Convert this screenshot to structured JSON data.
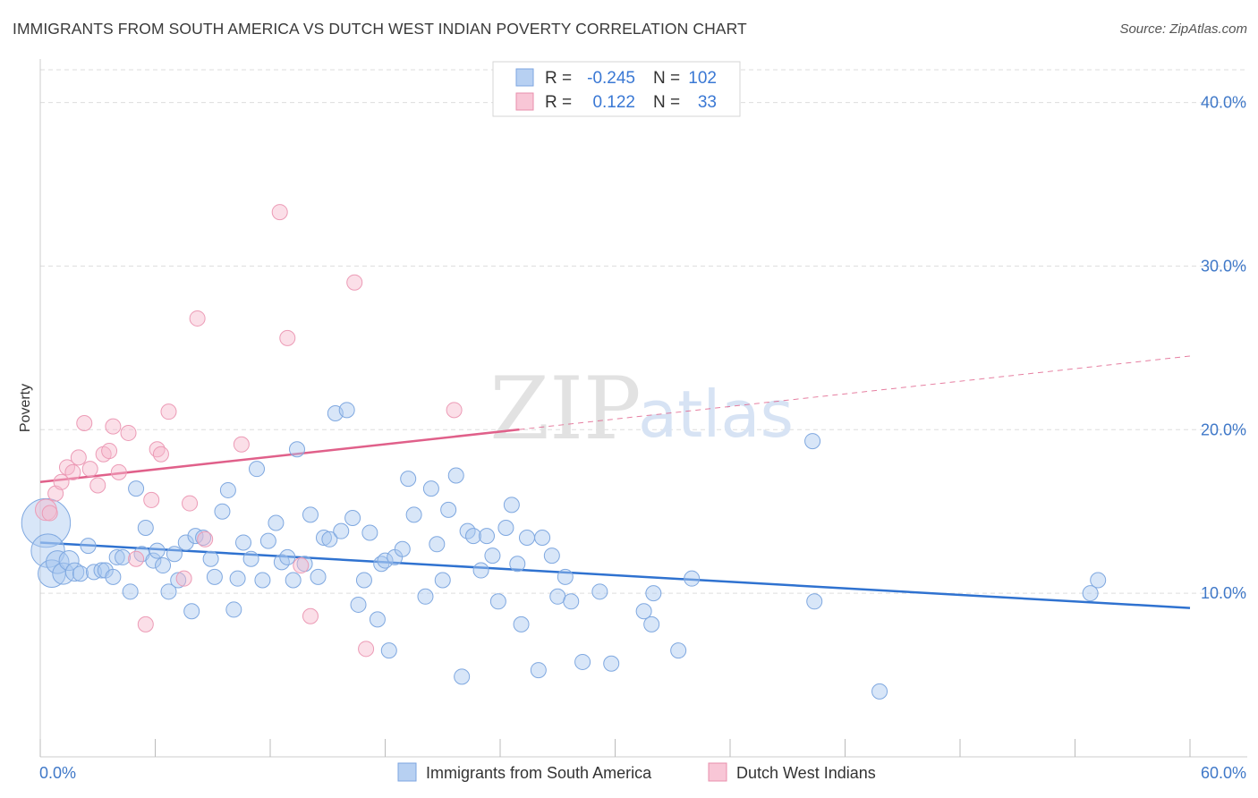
{
  "title": "IMMIGRANTS FROM SOUTH AMERICA VS DUTCH WEST INDIAN POVERTY CORRELATION CHART",
  "source": "Source: ZipAtlas.com",
  "watermark": {
    "zip": "ZIP",
    "atlas": "atlas"
  },
  "colors": {
    "blue": "#3a78d4",
    "blue_fill": "#a9c8f0",
    "blue_line": "#2f72d0",
    "pink": "#e0608a",
    "pink_fill": "#f6b8cc",
    "pink_line": "#e0608a",
    "axis_text": "#3f78c8",
    "grid": "#dddddd"
  },
  "legend": {
    "rows": [
      {
        "series": "blue",
        "r_label": "R =",
        "r_value": "-0.245",
        "n_label": "N =",
        "n_value": "102"
      },
      {
        "series": "pink",
        "r_label": "R =",
        "r_value": "0.122",
        "n_label": "N =",
        "n_value": "33"
      }
    ]
  },
  "bottom_legend": [
    {
      "series": "blue",
      "label": "Immigrants from South America"
    },
    {
      "series": "pink",
      "label": "Dutch West Indians"
    }
  ],
  "chart_data": {
    "type": "scatter",
    "title": "IMMIGRANTS FROM SOUTH AMERICA VS DUTCH WEST INDIAN POVERTY CORRELATION CHART",
    "xlabel": "",
    "ylabel": "Poverty",
    "xlim": [
      0,
      60
    ],
    "ylim": [
      0,
      42
    ],
    "x_tick_labels": [
      {
        "value": 0,
        "label": "0.0%"
      },
      {
        "value": 60,
        "label": "60.0%"
      }
    ],
    "x_minor_ticks": [
      0,
      6,
      12,
      18,
      24,
      30,
      36,
      42,
      48,
      54,
      60
    ],
    "y_ticks": [
      {
        "value": 10,
        "label": "10.0%"
      },
      {
        "value": 20,
        "label": "20.0%"
      },
      {
        "value": 30,
        "label": "30.0%"
      },
      {
        "value": 40,
        "label": "40.0%"
      }
    ],
    "grid": true,
    "series": [
      {
        "name": "Immigrants from South America",
        "color": "blue",
        "trend": {
          "x0": 0,
          "y0": 13.1,
          "x1": 60,
          "y1": 9.1,
          "dashed_from": null
        },
        "points": [
          [
            0.3,
            14.3,
            3.2
          ],
          [
            0.4,
            12.6,
            2.2
          ],
          [
            0.6,
            11.2,
            1.8
          ],
          [
            0.9,
            11.9,
            1.5
          ],
          [
            1.2,
            11.2,
            1.4
          ],
          [
            1.5,
            12.0,
            1.3
          ],
          [
            1.8,
            11.3,
            1.2
          ],
          [
            2.1,
            11.2,
            1.0
          ],
          [
            2.5,
            12.9,
            1.0
          ],
          [
            2.8,
            11.3,
            1.0
          ],
          [
            3.2,
            11.4,
            1.0
          ],
          [
            3.4,
            11.4,
            1.0
          ],
          [
            3.8,
            11.0,
            1.0
          ],
          [
            4.0,
            12.2,
            1.0
          ],
          [
            4.3,
            12.2,
            1.0
          ],
          [
            4.7,
            10.1,
            1.0
          ],
          [
            5.0,
            16.4,
            1.0
          ],
          [
            5.3,
            12.4,
            1.0
          ],
          [
            5.5,
            14.0,
            1.0
          ],
          [
            5.9,
            12.0,
            1.0
          ],
          [
            6.1,
            12.6,
            1.0
          ],
          [
            6.4,
            11.7,
            1.0
          ],
          [
            6.7,
            10.1,
            1.0
          ],
          [
            7.0,
            12.4,
            1.0
          ],
          [
            7.2,
            10.8,
            1.0
          ],
          [
            7.6,
            13.1,
            1.0
          ],
          [
            7.9,
            8.9,
            1.0
          ],
          [
            8.1,
            13.5,
            1.0
          ],
          [
            8.5,
            13.4,
            1.0
          ],
          [
            8.9,
            12.1,
            1.0
          ],
          [
            9.1,
            11.0,
            1.0
          ],
          [
            9.5,
            15.0,
            1.0
          ],
          [
            9.8,
            16.3,
            1.0
          ],
          [
            10.1,
            9.0,
            1.0
          ],
          [
            10.3,
            10.9,
            1.0
          ],
          [
            10.6,
            13.1,
            1.0
          ],
          [
            11.0,
            12.1,
            1.0
          ],
          [
            11.3,
            17.6,
            1.0
          ],
          [
            11.6,
            10.8,
            1.0
          ],
          [
            11.9,
            13.2,
            1.0
          ],
          [
            12.3,
            14.3,
            1.0
          ],
          [
            12.6,
            11.9,
            1.0
          ],
          [
            12.9,
            12.2,
            1.0
          ],
          [
            13.2,
            10.8,
            1.0
          ],
          [
            13.4,
            18.8,
            1.0
          ],
          [
            13.8,
            11.8,
            1.0
          ],
          [
            14.1,
            14.8,
            1.0
          ],
          [
            14.5,
            11.0,
            1.0
          ],
          [
            14.8,
            13.4,
            1.0
          ],
          [
            15.1,
            13.3,
            1.0
          ],
          [
            15.4,
            21.0,
            1.0
          ],
          [
            15.7,
            13.8,
            1.0
          ],
          [
            16.0,
            21.2,
            1.0
          ],
          [
            16.3,
            14.6,
            1.0
          ],
          [
            16.6,
            9.3,
            1.0
          ],
          [
            16.9,
            10.8,
            1.0
          ],
          [
            17.2,
            13.7,
            1.0
          ],
          [
            17.6,
            8.4,
            1.0
          ],
          [
            17.8,
            11.8,
            1.0
          ],
          [
            18.0,
            12.0,
            1.0
          ],
          [
            18.2,
            6.5,
            1.0
          ],
          [
            18.5,
            12.2,
            1.0
          ],
          [
            18.9,
            12.7,
            1.0
          ],
          [
            19.2,
            17.0,
            1.0
          ],
          [
            19.5,
            14.8,
            1.0
          ],
          [
            20.1,
            9.8,
            1.0
          ],
          [
            20.4,
            16.4,
            1.0
          ],
          [
            20.7,
            13.0,
            1.0
          ],
          [
            21.0,
            10.8,
            1.0
          ],
          [
            21.3,
            15.1,
            1.0
          ],
          [
            21.7,
            17.2,
            1.0
          ],
          [
            22.0,
            4.9,
            1.0
          ],
          [
            22.3,
            13.8,
            1.0
          ],
          [
            22.6,
            13.5,
            1.0
          ],
          [
            23.0,
            11.4,
            1.0
          ],
          [
            23.3,
            13.5,
            1.0
          ],
          [
            23.6,
            12.3,
            1.0
          ],
          [
            23.9,
            9.5,
            1.0
          ],
          [
            24.3,
            14.0,
            1.0
          ],
          [
            24.6,
            15.4,
            1.0
          ],
          [
            24.9,
            11.8,
            1.0
          ],
          [
            25.1,
            8.1,
            1.0
          ],
          [
            25.4,
            13.4,
            1.0
          ],
          [
            26.0,
            5.3,
            1.0
          ],
          [
            26.2,
            13.4,
            1.0
          ],
          [
            26.7,
            12.3,
            1.0
          ],
          [
            27.0,
            9.8,
            1.0
          ],
          [
            27.4,
            11.0,
            1.0
          ],
          [
            27.7,
            9.5,
            1.0
          ],
          [
            28.3,
            5.8,
            1.0
          ],
          [
            29.2,
            10.1,
            1.0
          ],
          [
            29.8,
            5.7,
            1.0
          ],
          [
            31.5,
            8.9,
            1.0
          ],
          [
            31.9,
            8.1,
            1.0
          ],
          [
            32.0,
            10.0,
            1.0
          ],
          [
            33.3,
            6.5,
            1.0
          ],
          [
            34.0,
            10.9,
            1.0
          ],
          [
            40.4,
            9.5,
            1.0
          ],
          [
            40.3,
            19.3,
            1.0
          ],
          [
            43.8,
            4.0,
            1.0
          ],
          [
            54.8,
            10.0,
            1.0
          ],
          [
            55.2,
            10.8,
            1.0
          ]
        ]
      },
      {
        "name": "Dutch West Indians",
        "color": "pink",
        "trend": {
          "x0": 0,
          "y0": 16.8,
          "x1": 60,
          "y1": 24.5,
          "dashed_from": 25
        },
        "points": [
          [
            0.3,
            15.1,
            1.4
          ],
          [
            0.5,
            14.9,
            1.0
          ],
          [
            0.8,
            16.1,
            1.0
          ],
          [
            1.1,
            16.8,
            1.0
          ],
          [
            1.4,
            17.7,
            1.0
          ],
          [
            1.7,
            17.4,
            1.0
          ],
          [
            2.0,
            18.3,
            1.0
          ],
          [
            2.3,
            20.4,
            1.0
          ],
          [
            2.6,
            17.6,
            1.0
          ],
          [
            3.0,
            16.6,
            1.0
          ],
          [
            3.3,
            18.5,
            1.0
          ],
          [
            3.6,
            18.7,
            1.0
          ],
          [
            3.8,
            20.2,
            1.0
          ],
          [
            4.1,
            17.4,
            1.0
          ],
          [
            4.6,
            19.8,
            1.0
          ],
          [
            5.0,
            12.1,
            1.0
          ],
          [
            5.5,
            8.1,
            1.0
          ],
          [
            5.8,
            15.7,
            1.0
          ],
          [
            6.1,
            18.8,
            1.0
          ],
          [
            6.3,
            18.5,
            1.0
          ],
          [
            6.7,
            21.1,
            1.0
          ],
          [
            7.5,
            10.9,
            1.0
          ],
          [
            7.8,
            15.5,
            1.0
          ],
          [
            8.2,
            26.8,
            1.0
          ],
          [
            8.6,
            13.3,
            1.0
          ],
          [
            10.5,
            19.1,
            1.0
          ],
          [
            12.5,
            33.3,
            1.0
          ],
          [
            12.9,
            25.6,
            1.0
          ],
          [
            13.6,
            11.7,
            1.0
          ],
          [
            14.1,
            8.6,
            1.0
          ],
          [
            16.4,
            29.0,
            1.0
          ],
          [
            17.0,
            6.6,
            1.0
          ],
          [
            21.6,
            21.2,
            1.0
          ]
        ]
      }
    ]
  }
}
